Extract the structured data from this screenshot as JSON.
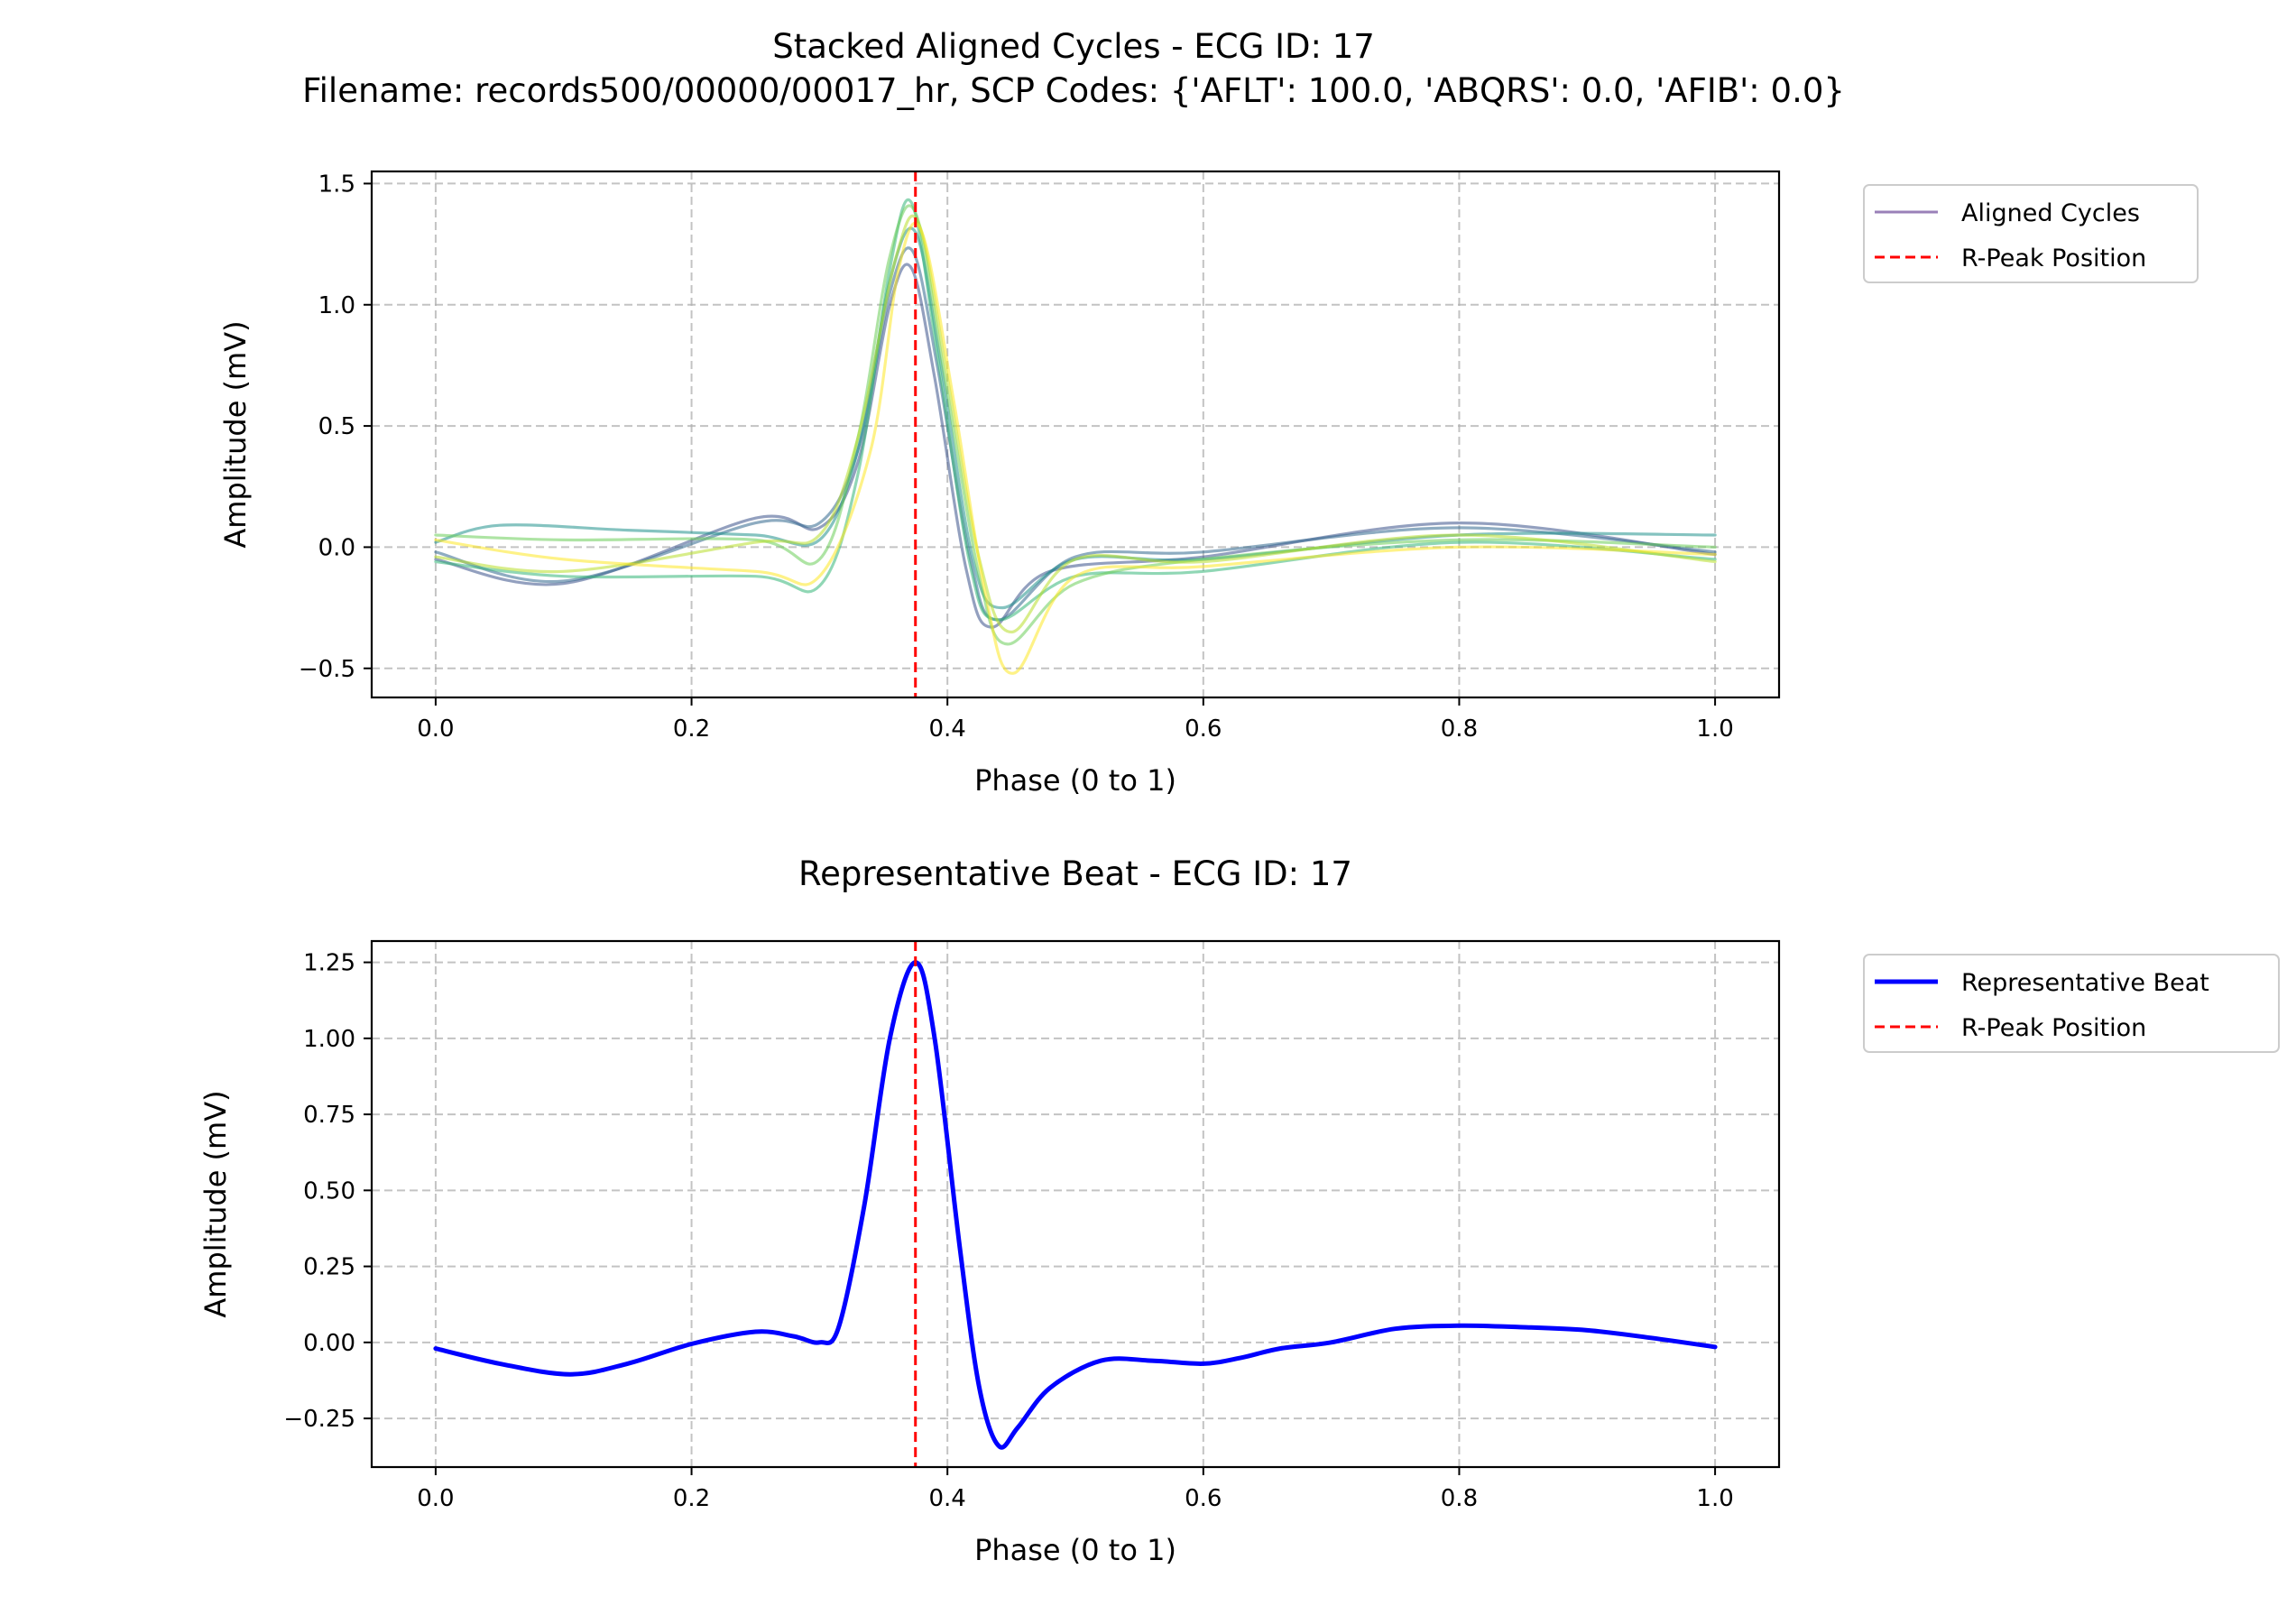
{
  "figure": {
    "suptitle_line1": "Stacked Aligned Cycles - ECG ID: 17",
    "suptitle_line2": "Filename: records500/00000/00017_hr, SCP Codes: {'AFLT': 100.0, 'ABQRS': 0.0, 'AFIB': 0.0}"
  },
  "chart_data": [
    {
      "type": "line",
      "title": "",
      "xlabel": "Phase (0 to 1)",
      "ylabel": "Amplitude (mV)",
      "xlim": [
        -0.05,
        1.05
      ],
      "ylim": [
        -0.62,
        1.55
      ],
      "xticks": [
        0.0,
        0.2,
        0.4,
        0.6,
        0.8,
        1.0
      ],
      "xtick_labels": [
        "0.0",
        "0.2",
        "0.4",
        "0.6",
        "0.8",
        "1.0"
      ],
      "yticks": [
        -0.5,
        0.0,
        0.5,
        1.0,
        1.5
      ],
      "ytick_labels": [
        "−0.5",
        "0.0",
        "0.5",
        "1.0",
        "1.5"
      ],
      "grid": true,
      "legend": "outside-upper-right",
      "legend_entries": [
        {
          "label": "Aligned Cycles",
          "color": "#9a80b8",
          "style": "solid"
        },
        {
          "label": "R-Peak Position",
          "color": "#ff0000",
          "style": "dashed"
        }
      ],
      "vline": {
        "x": 0.375,
        "color": "#ff0000"
      },
      "series": [
        {
          "color": "#3b528b",
          "values": [
            [
              0,
              -0.05
            ],
            [
              0.1,
              -0.15
            ],
            [
              0.25,
              0.12
            ],
            [
              0.3,
              0.08
            ],
            [
              0.33,
              0.35
            ],
            [
              0.355,
              1.0
            ],
            [
              0.372,
              1.15
            ],
            [
              0.39,
              0.7
            ],
            [
              0.415,
              -0.1
            ],
            [
              0.435,
              -0.33
            ],
            [
              0.48,
              -0.1
            ],
            [
              0.6,
              -0.04
            ],
            [
              0.8,
              0.1
            ],
            [
              1.0,
              -0.03
            ]
          ]
        },
        {
          "color": "#31688e",
          "values": [
            [
              0,
              -0.02
            ],
            [
              0.1,
              -0.14
            ],
            [
              0.25,
              0.1
            ],
            [
              0.3,
              0.1
            ],
            [
              0.33,
              0.4
            ],
            [
              0.355,
              1.05
            ],
            [
              0.373,
              1.22
            ],
            [
              0.392,
              0.75
            ],
            [
              0.418,
              -0.05
            ],
            [
              0.44,
              -0.3
            ],
            [
              0.5,
              -0.04
            ],
            [
              0.6,
              -0.02
            ],
            [
              0.8,
              0.08
            ],
            [
              1.0,
              -0.02
            ]
          ]
        },
        {
          "color": "#21918c",
          "values": [
            [
              0,
              0.02
            ],
            [
              0.05,
              0.09
            ],
            [
              0.15,
              0.07
            ],
            [
              0.25,
              0.05
            ],
            [
              0.3,
              0.03
            ],
            [
              0.33,
              0.4
            ],
            [
              0.355,
              1.1
            ],
            [
              0.375,
              1.3
            ],
            [
              0.395,
              0.75
            ],
            [
              0.42,
              -0.05
            ],
            [
              0.443,
              -0.25
            ],
            [
              0.5,
              -0.05
            ],
            [
              0.6,
              -0.05
            ],
            [
              0.8,
              0.05
            ],
            [
              1.0,
              0.05
            ]
          ]
        },
        {
          "color": "#35b779",
          "values": [
            [
              0,
              -0.06
            ],
            [
              0.1,
              -0.12
            ],
            [
              0.25,
              -0.12
            ],
            [
              0.3,
              -0.16
            ],
            [
              0.33,
              0.3
            ],
            [
              0.355,
              1.15
            ],
            [
              0.372,
              1.42
            ],
            [
              0.392,
              0.8
            ],
            [
              0.418,
              -0.08
            ],
            [
              0.44,
              -0.3
            ],
            [
              0.5,
              -0.12
            ],
            [
              0.6,
              -0.1
            ],
            [
              0.8,
              0.02
            ],
            [
              1.0,
              -0.05
            ]
          ]
        },
        {
          "color": "#6ccd5a",
          "values": [
            [
              0,
              0.05
            ],
            [
              0.1,
              0.03
            ],
            [
              0.25,
              0.03
            ],
            [
              0.3,
              -0.05
            ],
            [
              0.33,
              0.45
            ],
            [
              0.355,
              1.2
            ],
            [
              0.375,
              1.38
            ],
            [
              0.398,
              0.7
            ],
            [
              0.425,
              -0.12
            ],
            [
              0.447,
              -0.4
            ],
            [
              0.5,
              -0.15
            ],
            [
              0.6,
              -0.05
            ],
            [
              0.8,
              0.03
            ],
            [
              1.0,
              0.0
            ]
          ]
        },
        {
          "color": "#b8de29",
          "values": [
            [
              0,
              -0.04
            ],
            [
              0.1,
              -0.1
            ],
            [
              0.25,
              0.02
            ],
            [
              0.3,
              0.05
            ],
            [
              0.33,
              0.45
            ],
            [
              0.36,
              1.2
            ],
            [
              0.378,
              1.33
            ],
            [
              0.4,
              0.7
            ],
            [
              0.425,
              -0.05
            ],
            [
              0.45,
              -0.35
            ],
            [
              0.5,
              -0.05
            ],
            [
              0.6,
              -0.06
            ],
            [
              0.8,
              0.05
            ],
            [
              1.0,
              -0.06
            ]
          ]
        },
        {
          "color": "#fde725",
          "values": [
            [
              0,
              0.03
            ],
            [
              0.1,
              -0.05
            ],
            [
              0.25,
              -0.1
            ],
            [
              0.3,
              -0.12
            ],
            [
              0.34,
              0.4
            ],
            [
              0.362,
              1.15
            ],
            [
              0.38,
              1.3
            ],
            [
              0.405,
              0.6
            ],
            [
              0.43,
              -0.2
            ],
            [
              0.452,
              -0.52
            ],
            [
              0.5,
              -0.12
            ],
            [
              0.6,
              -0.08
            ],
            [
              0.8,
              0.0
            ],
            [
              1.0,
              -0.03
            ]
          ]
        }
      ]
    },
    {
      "type": "line",
      "title": "Representative Beat - ECG ID: 17",
      "xlabel": "Phase (0 to 1)",
      "ylabel": "Amplitude (mV)",
      "xlim": [
        -0.05,
        1.05
      ],
      "ylim": [
        -0.41,
        1.32
      ],
      "xticks": [
        0.0,
        0.2,
        0.4,
        0.6,
        0.8,
        1.0
      ],
      "xtick_labels": [
        "0.0",
        "0.2",
        "0.4",
        "0.6",
        "0.8",
        "1.0"
      ],
      "yticks": [
        -0.25,
        0.0,
        0.25,
        0.5,
        0.75,
        1.0,
        1.25
      ],
      "ytick_labels": [
        "−0.25",
        "0.00",
        "0.25",
        "0.50",
        "0.75",
        "1.00",
        "1.25"
      ],
      "grid": true,
      "legend": "outside-upper-right",
      "legend_entries": [
        {
          "label": "Representative Beat",
          "color": "#0000ff",
          "style": "solid"
        },
        {
          "label": "R-Peak Position",
          "color": "#ff0000",
          "style": "dashed"
        }
      ],
      "vline": {
        "x": 0.375,
        "color": "#ff0000"
      },
      "series": [
        {
          "color": "#0000ff",
          "values": [
            [
              0,
              -0.02
            ],
            [
              0.05,
              -0.07
            ],
            [
              0.105,
              -0.105
            ],
            [
              0.15,
              -0.07
            ],
            [
              0.2,
              -0.005
            ],
            [
              0.25,
              0.035
            ],
            [
              0.28,
              0.02
            ],
            [
              0.3,
              0.0
            ],
            [
              0.315,
              0.05
            ],
            [
              0.335,
              0.45
            ],
            [
              0.355,
              1.0
            ],
            [
              0.375,
              1.25
            ],
            [
              0.39,
              1.0
            ],
            [
              0.41,
              0.3
            ],
            [
              0.425,
              -0.15
            ],
            [
              0.44,
              -0.34
            ],
            [
              0.455,
              -0.28
            ],
            [
              0.48,
              -0.15
            ],
            [
              0.52,
              -0.06
            ],
            [
              0.56,
              -0.06
            ],
            [
              0.6,
              -0.07
            ],
            [
              0.63,
              -0.05
            ],
            [
              0.66,
              -0.02
            ],
            [
              0.7,
              0.0
            ],
            [
              0.75,
              0.045
            ],
            [
              0.8,
              0.055
            ],
            [
              0.85,
              0.05
            ],
            [
              0.9,
              0.04
            ],
            [
              0.95,
              0.015
            ],
            [
              1.0,
              -0.015
            ]
          ]
        }
      ]
    }
  ]
}
